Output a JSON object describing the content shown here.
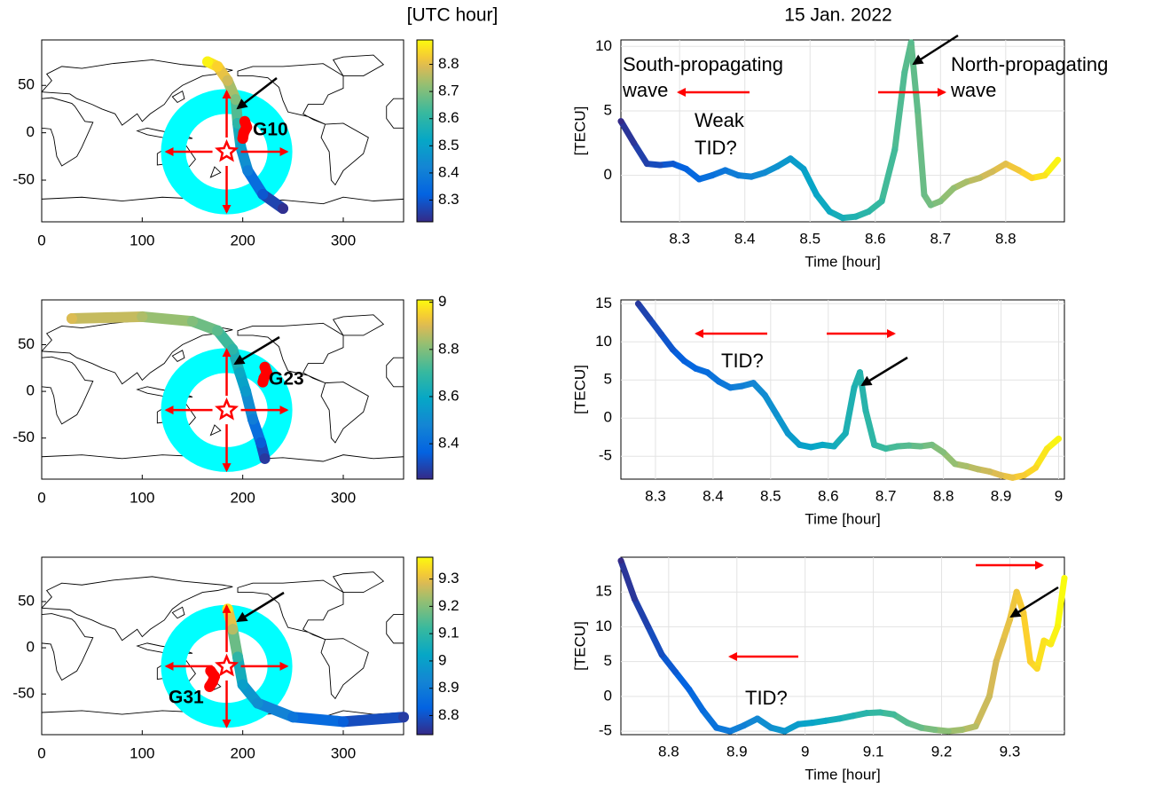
{
  "figure": {
    "title": "15 Jan. 2022",
    "colorbar_label": "[UTC hour]"
  },
  "chart_data": [
    {
      "type": "map",
      "satellite": "G10",
      "xlim": [
        0,
        360
      ],
      "ylim": [
        -94,
        98
      ],
      "xticks": [
        0,
        100,
        200,
        300
      ],
      "yticks": [
        -50,
        0,
        50
      ],
      "grid": false,
      "colormap": "parula",
      "clim": [
        8.22,
        8.89
      ],
      "cticks": [
        8.3,
        8.4,
        8.5,
        8.6,
        8.7,
        8.8
      ],
      "track": {
        "x": [
          165,
          175,
          185,
          193,
          195,
          198,
          205,
          220,
          240
        ],
        "y": [
          75,
          70,
          55,
          35,
          10,
          -15,
          -40,
          -65,
          -80
        ],
        "time": [
          8.88,
          8.84,
          8.78,
          8.7,
          8.6,
          8.5,
          8.4,
          8.3,
          8.23
        ]
      },
      "ionospheric_point": {
        "x": [
          202,
          204,
          201,
          200
        ],
        "y": [
          12,
          6,
          0,
          -6
        ],
        "color": "#ff0000"
      },
      "wavefront": {
        "center_x": 184,
        "center_y": -20,
        "radius": 53,
        "color": "#00ffff"
      }
    },
    {
      "type": "scatter",
      "xlabel": "Time [hour]",
      "ylabel": "[TECU]",
      "xlim": [
        8.21,
        8.89
      ],
      "ylim": [
        -3.6,
        10.5
      ],
      "xticks": [
        8.3,
        8.4,
        8.5,
        8.6,
        8.7,
        8.8
      ],
      "yticks": [
        0,
        5,
        10
      ],
      "grid": true,
      "colormap": "parula",
      "x": [
        8.21,
        8.23,
        8.25,
        8.27,
        8.29,
        8.31,
        8.33,
        8.35,
        8.37,
        8.39,
        8.41,
        8.43,
        8.45,
        8.47,
        8.49,
        8.51,
        8.53,
        8.55,
        8.57,
        8.59,
        8.61,
        8.63,
        8.645,
        8.655,
        8.665,
        8.675,
        8.685,
        8.7,
        8.72,
        8.74,
        8.76,
        8.78,
        8.8,
        8.82,
        8.84,
        8.86,
        8.88
      ],
      "y": [
        4.2,
        2.5,
        0.9,
        0.8,
        0.9,
        0.5,
        -0.3,
        0,
        0.4,
        0,
        -0.1,
        0.2,
        0.7,
        1.3,
        0.5,
        -1.5,
        -2.8,
        -3.3,
        -3.2,
        -2.8,
        -2,
        2,
        8,
        10.3,
        5,
        -1.5,
        -2.3,
        -2,
        -1,
        -0.5,
        -0.2,
        0.3,
        0.9,
        0.4,
        -0.2,
        0,
        1.2
      ],
      "annotations": [
        {
          "text": "South-propagating",
          "color": "#ff0000"
        },
        {
          "text": "wave",
          "color": "#ff0000"
        },
        {
          "text": "North-propagating",
          "color": "#ff0000"
        },
        {
          "text": "wave",
          "color": "#ff0000"
        },
        {
          "text": "Weak",
          "color": "#000000"
        },
        {
          "text": "TID?",
          "color": "#000000"
        }
      ]
    },
    {
      "type": "map",
      "satellite": "G23",
      "xlim": [
        0,
        360
      ],
      "ylim": [
        -94,
        98
      ],
      "xticks": [
        0,
        100,
        200,
        300
      ],
      "yticks": [
        -50,
        0,
        50
      ],
      "grid": false,
      "colormap": "parula",
      "clim": [
        8.25,
        9.01
      ],
      "cticks": [
        8.4,
        8.6,
        8.8,
        9
      ],
      "track": {
        "x": [
          30,
          100,
          150,
          175,
          190,
          197,
          203,
          210,
          218,
          222
        ],
        "y": [
          78,
          80,
          75,
          65,
          45,
          20,
          0,
          -30,
          -55,
          -72
        ],
        "time": [
          8.9,
          8.85,
          8.8,
          8.75,
          8.68,
          8.6,
          8.55,
          8.45,
          8.35,
          8.28
        ]
      },
      "ionospheric_point": {
        "x": [
          222,
          224,
          221,
          220
        ],
        "y": [
          26,
          20,
          14,
          10
        ],
        "color": "#ff0000"
      },
      "wavefront": {
        "center_x": 184,
        "center_y": -20,
        "radius": 53,
        "color": "#00ffff"
      }
    },
    {
      "type": "scatter",
      "xlabel": "Time [hour]",
      "ylabel": "[TECU]",
      "xlim": [
        8.24,
        9.01
      ],
      "ylim": [
        -8,
        15.5
      ],
      "xticks": [
        8.3,
        8.4,
        8.5,
        8.6,
        8.7,
        8.8,
        8.9,
        9
      ],
      "yticks": [
        -5,
        0,
        5,
        10,
        15
      ],
      "grid": true,
      "colormap": "parula",
      "x": [
        8.27,
        8.29,
        8.31,
        8.33,
        8.35,
        8.37,
        8.39,
        8.41,
        8.43,
        8.45,
        8.47,
        8.49,
        8.51,
        8.53,
        8.55,
        8.57,
        8.59,
        8.61,
        8.63,
        8.645,
        8.655,
        8.665,
        8.68,
        8.7,
        8.72,
        8.74,
        8.76,
        8.78,
        8.8,
        8.82,
        8.84,
        8.86,
        8.88,
        8.9,
        8.92,
        8.94,
        8.96,
        8.98,
        9.0
      ],
      "y": [
        15,
        13,
        11,
        9,
        7.5,
        6.5,
        6,
        4.8,
        4,
        4.2,
        4.6,
        3,
        0.5,
        -2,
        -3.5,
        -3.8,
        -3.5,
        -3.7,
        -2,
        4,
        6,
        1,
        -3.5,
        -4,
        -3.7,
        -3.6,
        -3.7,
        -3.5,
        -4.5,
        -6,
        -6.3,
        -6.7,
        -7,
        -7.5,
        -7.8,
        -7.5,
        -6.5,
        -4,
        -2.7
      ],
      "annotations": [
        {
          "text": "TID?",
          "color": "#000000"
        }
      ]
    },
    {
      "type": "map",
      "satellite": "G31",
      "xlim": [
        0,
        360
      ],
      "ylim": [
        -94,
        98
      ],
      "xticks": [
        0,
        100,
        200,
        300
      ],
      "yticks": [
        -50,
        0,
        50
      ],
      "grid": false,
      "colormap": "parula",
      "clim": [
        8.73,
        9.38
      ],
      "cticks": [
        8.8,
        8.9,
        9,
        9.1,
        9.2,
        9.3
      ],
      "track": {
        "x": [
          185,
          190,
          195,
          200,
          215,
          250,
          300,
          360
        ],
        "y": [
          42,
          20,
          -10,
          -40,
          -60,
          -75,
          -80,
          -75
        ],
        "time": [
          9.35,
          9.25,
          9.1,
          9.0,
          8.95,
          8.88,
          8.82,
          8.76
        ]
      },
      "ionospheric_point": {
        "x": [
          168,
          172,
          170,
          167
        ],
        "y": [
          -25,
          -31,
          -37,
          -42
        ],
        "color": "#ff0000"
      },
      "wavefront": {
        "center_x": 184,
        "center_y": -20,
        "radius": 53,
        "color": "#00ffff"
      }
    },
    {
      "type": "scatter",
      "xlabel": "Time [hour]",
      "ylabel": "[TECU]",
      "xlim": [
        8.73,
        9.38
      ],
      "ylim": [
        -5.5,
        20
      ],
      "xticks": [
        8.8,
        8.9,
        9,
        9.1,
        9.2,
        9.3
      ],
      "yticks": [
        -5,
        0,
        5,
        10,
        15
      ],
      "grid": true,
      "colormap": "parula",
      "x": [
        8.73,
        8.75,
        8.77,
        8.79,
        8.81,
        8.83,
        8.85,
        8.87,
        8.89,
        8.91,
        8.93,
        8.95,
        8.97,
        8.99,
        9.01,
        9.03,
        9.05,
        9.07,
        9.09,
        9.11,
        9.13,
        9.15,
        9.17,
        9.19,
        9.21,
        9.23,
        9.25,
        9.27,
        9.28,
        9.29,
        9.3,
        9.31,
        9.32,
        9.33,
        9.34,
        9.35,
        9.36,
        9.37,
        9.38
      ],
      "y": [
        19.5,
        14,
        10,
        6,
        3.5,
        1,
        -2,
        -4.5,
        -5,
        -4.2,
        -3.2,
        -4.5,
        -5,
        -4,
        -3.8,
        -3.5,
        -3.2,
        -2.8,
        -2.4,
        -2.3,
        -2.6,
        -3.8,
        -4.5,
        -4.8,
        -5,
        -4.8,
        -4.3,
        0,
        5,
        8,
        11,
        15,
        12,
        5,
        4,
        8,
        7.5,
        10,
        17
      ],
      "annotations": [
        {
          "text": "TID?",
          "color": "#000000"
        }
      ]
    }
  ]
}
